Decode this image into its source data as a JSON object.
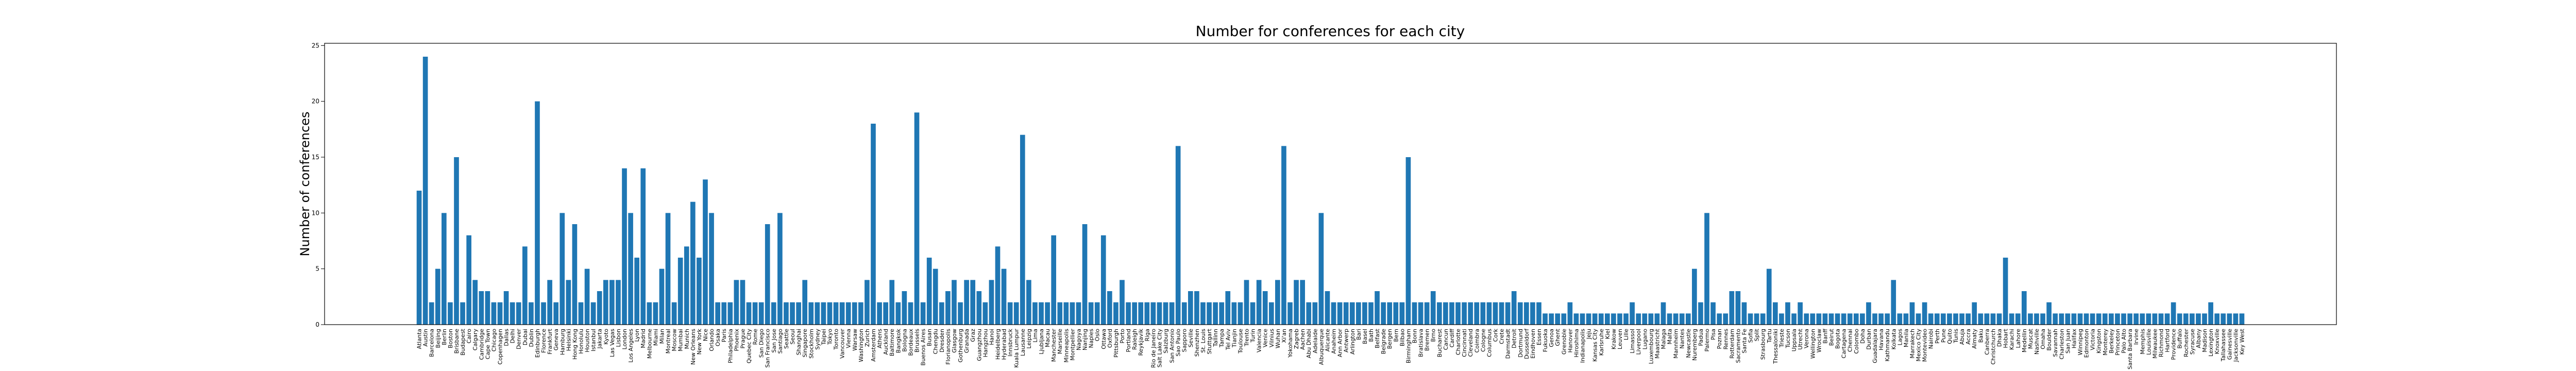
{
  "chart_data": {
    "type": "bar",
    "title": "Number for conferences for each city",
    "ylabel": "Number of conferences",
    "color": "#1f77b4",
    "ylim": [
      0,
      25.2
    ],
    "yticks": [
      0,
      5,
      10,
      15,
      20,
      25
    ],
    "categories": [
      "Atlanta",
      "Austin",
      "Barcelona",
      "Beijing",
      "Berlin",
      "Boston",
      "Brisbane",
      "Budapest",
      "Cairo",
      "Calgary",
      "Cambridge",
      "Cape Town",
      "Chicago",
      "Copenhagen",
      "Dallas",
      "Delhi",
      "Denver",
      "Dubai",
      "Dublin",
      "Edinburgh",
      "Florence",
      "Frankfurt",
      "Geneva",
      "Hamburg",
      "Helsinki",
      "Hong Kong",
      "Honolulu",
      "Houston",
      "Istanbul",
      "Jakarta",
      "Kyoto",
      "Las Vegas",
      "Lisbon",
      "London",
      "Los Angeles",
      "Lyon",
      "Madrid",
      "Melbourne",
      "Miami",
      "Milan",
      "Montreal",
      "Moscow",
      "Mumbai",
      "Munich",
      "New Orleans",
      "New York",
      "Nice",
      "Orlando",
      "Osaka",
      "Paris",
      "Philadelphia",
      "Phoenix",
      "Prague",
      "Quebec City",
      "Rome",
      "San Diego",
      "San Francisco",
      "San Jose",
      "Santiago",
      "Seattle",
      "Seoul",
      "Shanghai",
      "Singapore",
      "Stockholm",
      "Sydney",
      "Taipei",
      "Tokyo",
      "Toronto",
      "Vancouver",
      "Vienna",
      "Warsaw",
      "Washington",
      "Zurich",
      "Amsterdam",
      "Athens",
      "Auckland",
      "Baltimore",
      "Bangkok",
      "Bologna",
      "Bordeaux",
      "Brussels",
      "Buenos Aires",
      "Busan",
      "Chengdu",
      "Dresden",
      "Florianopolis",
      "Glasgow",
      "Gothenburg",
      "Granada",
      "Graz",
      "Guangzhou",
      "Hangzhou",
      "Hanoi",
      "Heidelberg",
      "Hyderabad",
      "Innsbruck",
      "Kuala Lumpur",
      "Lausanne",
      "Leipzig",
      "Lima",
      "Ljubljana",
      "Macau",
      "Manchester",
      "Marseille",
      "Minneapolis",
      "Montpellier",
      "Nagoya",
      "Nanjing",
      "Naples",
      "Oslo",
      "Ottawa",
      "Oxford",
      "Pittsburgh",
      "Porto",
      "Portland",
      "Raleigh",
      "Reykjavik",
      "Riga",
      "Rio de Janeiro",
      "Salt Lake City",
      "Salzburg",
      "San Antonio",
      "Sao Paulo",
      "Sapporo",
      "Seville",
      "Shenzhen",
      "St. Louis",
      "Stuttgart",
      "Tallinn",
      "Tampa",
      "Tel Aviv",
      "Tianjin",
      "Toulouse",
      "Trento",
      "Turin",
      "Valencia",
      "Venice",
      "Vilnius",
      "Wuhan",
      "Xi'an",
      "Yokohama",
      "Zagreb",
      "Aachen",
      "Abu Dhabi",
      "Adelaide",
      "Albuquerque",
      "Alicante",
      "Anaheim",
      "Ann Arbor",
      "Antwerp",
      "Arlington",
      "Bari",
      "Basel",
      "Bath",
      "Belfast",
      "Belgrade",
      "Bergen",
      "Bern",
      "Bilbao",
      "Birmingham",
      "Bonn",
      "Bratislava",
      "Bremen",
      "Brno",
      "Bucharest",
      "Cancun",
      "Cardiff",
      "Charlotte",
      "Cincinnati",
      "Cleveland",
      "Coimbra",
      "Cologne",
      "Columbus",
      "Cork",
      "Crete",
      "Darmstadt",
      "Detroit",
      "Dortmund",
      "Dusseldorf",
      "Eindhoven",
      "Essen",
      "Fukuoka",
      "Genoa",
      "Ghent",
      "Grenoble",
      "Hanover",
      "Hiroshima",
      "Indianapolis",
      "Jeju",
      "Kansas City",
      "Karlsruhe",
      "Kiel",
      "Krakow",
      "Leuven",
      "Lille",
      "Limassol",
      "Liverpool",
      "Lugano",
      "Luxembourg",
      "Maastricht",
      "Malaga",
      "Malta",
      "Mannheim",
      "Nantes",
      "Newcastle",
      "Nuremberg",
      "Padua",
      "Palermo",
      "Pisa",
      "Poznan",
      "Rennes",
      "Rotterdam",
      "Sacramento",
      "Santa Fe",
      "Sofia",
      "Split",
      "Strasbourg",
      "Tartu",
      "Thessaloniki",
      "Trieste",
      "Tucson",
      "Uppsala",
      "Utrecht",
      "Verona",
      "Wellington",
      "Wroclaw",
      "Banff",
      "Beirut",
      "Bogota",
      "Cartagena",
      "Chennai",
      "Colombo",
      "Doha",
      "Durban",
      "Guadalajara",
      "Havana",
      "Kathmandu",
      "Kolkata",
      "Lagos",
      "Manila",
      "Marrakech",
      "Mexico City",
      "Montevideo",
      "Nairobi",
      "Perth",
      "Pune",
      "Quito",
      "Tunis",
      "Abuja",
      "Accra",
      "Almaty",
      "Baku",
      "Canberra",
      "Christchurch",
      "Dhaka",
      "Hobart",
      "Karachi",
      "Lahore",
      "Medellin",
      "Muscat",
      "Nashville",
      "Omaha",
      "Boulder",
      "Savannah",
      "Charleston",
      "San Juan",
      "Halifax",
      "Winnipeg",
      "Edmonton",
      "Victoria",
      "Kingston",
      "Monterey",
      "Berkeley",
      "Princeton",
      "Palo Alto",
      "Santa Barbara",
      "Irvine",
      "Memphis",
      "Louisville",
      "Milwaukee",
      "Richmond",
      "Hartford",
      "Providence",
      "Buffalo",
      "Rochester",
      "Syracuse",
      "Albany",
      "Madison",
      "Lexington",
      "Knoxville",
      "Tallahassee",
      "Gainesville",
      "Jacksonville",
      "Key West"
    ],
    "values": [
      12,
      24,
      2,
      5,
      10,
      2,
      15,
      2,
      8,
      4,
      3,
      3,
      2,
      2,
      3,
      2,
      2,
      7,
      2,
      20,
      2,
      4,
      2,
      10,
      4,
      9,
      2,
      5,
      2,
      3,
      4,
      4,
      4,
      14,
      10,
      6,
      14,
      2,
      2,
      5,
      10,
      2,
      6,
      7,
      11,
      6,
      13,
      10,
      2,
      2,
      2,
      4,
      4,
      2,
      2,
      2,
      9,
      2,
      10,
      2,
      2,
      2,
      4,
      2,
      2,
      2,
      2,
      2,
      2,
      2,
      2,
      2,
      4,
      18,
      2,
      2,
      4,
      2,
      3,
      2,
      19,
      2,
      6,
      5,
      2,
      3,
      4,
      2,
      4,
      4,
      3,
      2,
      4,
      7,
      5,
      2,
      2,
      17,
      4,
      2,
      2,
      2,
      8,
      2,
      2,
      2,
      2,
      9,
      2,
      2,
      8,
      3,
      2,
      4,
      2,
      2,
      2,
      2,
      2,
      2,
      2,
      2,
      16,
      2,
      3,
      3,
      2,
      2,
      2,
      2,
      3,
      2,
      2,
      4,
      2,
      4,
      3,
      2,
      4,
      16,
      2,
      4,
      4,
      2,
      2,
      10,
      3,
      2,
      2,
      2,
      2,
      2,
      2,
      2,
      3,
      2,
      2,
      2,
      2,
      15,
      2,
      2,
      2,
      3,
      2,
      2,
      2,
      2,
      2,
      2,
      2,
      2,
      2,
      2,
      2,
      2,
      3,
      2,
      2,
      2,
      2,
      1,
      1,
      1,
      1,
      2,
      1,
      1,
      1,
      1,
      1,
      1,
      1,
      1,
      1,
      2,
      1,
      1,
      1,
      1,
      2,
      1,
      1,
      1,
      1,
      5,
      2,
      10,
      2,
      1,
      1,
      3,
      3,
      2,
      1,
      1,
      1,
      5,
      2,
      1,
      2,
      1,
      2,
      1,
      1,
      1,
      1,
      1,
      1,
      1,
      1,
      1,
      1,
      2,
      1,
      1,
      1,
      4,
      1,
      1,
      2,
      1,
      2,
      1,
      1,
      1,
      1,
      1,
      1,
      1,
      2,
      1,
      1,
      1,
      1,
      6,
      1,
      1,
      3,
      1,
      1,
      1,
      2,
      1,
      1,
      1,
      1,
      1,
      1,
      1,
      1,
      1,
      1,
      1,
      1,
      1,
      1,
      1,
      1,
      1,
      1,
      1,
      2,
      1,
      1,
      1,
      1,
      1,
      2,
      1,
      1,
      1,
      1,
      1
    ]
  }
}
